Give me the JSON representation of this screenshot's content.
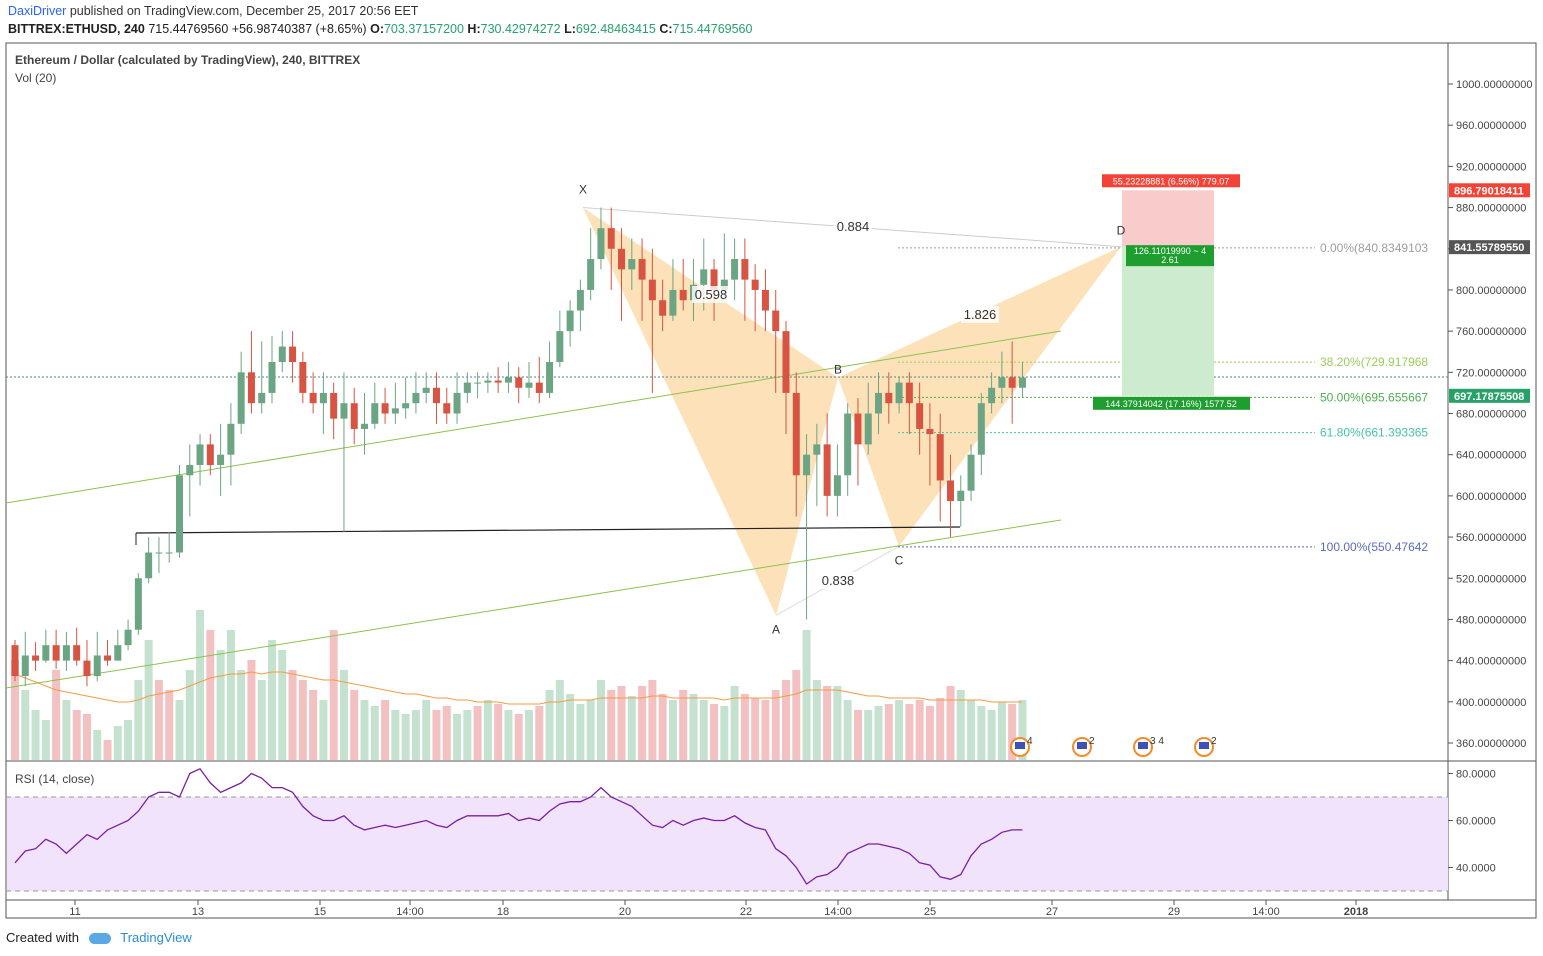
{
  "header": {
    "user": "DaxiDriver",
    "published": "published on TradingView.com, December 25, 2017 20:56 EET",
    "symbol": "BITTREX:ETHUSD, 240",
    "last": "715.44769560",
    "change": "+56.98740387 (+8.65%)",
    "o_label": "O:",
    "o": "703.37157200",
    "h_label": "H:",
    "h": "730.42974272",
    "l_label": "L:",
    "l": "692.48463415",
    "c_label": "C:",
    "c": "715.44769560"
  },
  "legend": {
    "title": "Ethereum / Dollar (calculated by TradingView), 240, BITTREX",
    "vol": "Vol (20)",
    "rsi": "RSI (14, close)"
  },
  "footer": {
    "created": "Created with",
    "brand": "TradingView"
  },
  "colors": {
    "up": "#6ba583",
    "down": "#d75442",
    "vol_up": "#c5e2d1",
    "vol_down": "#f3c1c1",
    "pattern": "#fcd9a8",
    "rsi": "#7b1fa2"
  },
  "chart_data": {
    "type": "candlestick",
    "price_axis": {
      "min": 340,
      "max": 1020,
      "ticks": [
        "1000.00000000",
        "960.00000000",
        "920.00000000",
        "880.00000000",
        "840.00000000",
        "800.00000000",
        "760.00000000",
        "720.00000000",
        "680.00000000",
        "640.00000000",
        "600.00000000",
        "560.00000000",
        "520.00000000",
        "480.00000000",
        "440.00000000",
        "400.00000000",
        "360.00000000"
      ]
    },
    "rsi_axis": {
      "ticks": [
        "80.0000",
        "60.0000",
        "40.0000"
      ],
      "upper": 70,
      "lower": 30
    },
    "time_axis": [
      "11",
      "13",
      "15",
      "14:00",
      "18",
      "20",
      "22",
      "14:00",
      "25",
      "27",
      "29",
      "14:00",
      "2018"
    ],
    "candles": [
      [
        455,
        425,
        460,
        420
      ],
      [
        425,
        445,
        468,
        415
      ],
      [
        445,
        440,
        458,
        430
      ],
      [
        440,
        455,
        470,
        438
      ],
      [
        455,
        440,
        470,
        432
      ],
      [
        440,
        455,
        468,
        430
      ],
      [
        455,
        440,
        472,
        435
      ],
      [
        440,
        425,
        460,
        415
      ],
      [
        425,
        445,
        468,
        420
      ],
      [
        445,
        440,
        460,
        435
      ],
      [
        440,
        455,
        470,
        445
      ],
      [
        455,
        470,
        480,
        450
      ],
      [
        470,
        520,
        525,
        465
      ],
      [
        520,
        545,
        560,
        515
      ],
      [
        545,
        545,
        560,
        525
      ],
      [
        545,
        545,
        565,
        535
      ],
      [
        545,
        620,
        630,
        540
      ],
      [
        620,
        630,
        650,
        580
      ],
      [
        630,
        650,
        660,
        610
      ],
      [
        650,
        630,
        660,
        620
      ],
      [
        630,
        640,
        670,
        600
      ],
      [
        640,
        670,
        690,
        610
      ],
      [
        670,
        720,
        740,
        660
      ],
      [
        720,
        690,
        760,
        680
      ],
      [
        690,
        700,
        750,
        680
      ],
      [
        700,
        730,
        755,
        690
      ],
      [
        730,
        745,
        760,
        720
      ],
      [
        745,
        730,
        760,
        710
      ],
      [
        730,
        700,
        740,
        690
      ],
      [
        700,
        690,
        720,
        680
      ],
      [
        690,
        700,
        720,
        660
      ],
      [
        700,
        675,
        710,
        655
      ],
      [
        675,
        690,
        720,
        565
      ],
      [
        690,
        665,
        705,
        650
      ],
      [
        665,
        670,
        700,
        640
      ],
      [
        670,
        690,
        710,
        665
      ],
      [
        690,
        680,
        705,
        670
      ],
      [
        680,
        685,
        710,
        670
      ],
      [
        685,
        690,
        715,
        675
      ],
      [
        690,
        700,
        720,
        680
      ],
      [
        700,
        705,
        720,
        690
      ],
      [
        705,
        690,
        720,
        670
      ],
      [
        690,
        680,
        705,
        670
      ],
      [
        680,
        700,
        720,
        670
      ],
      [
        700,
        710,
        720,
        690
      ],
      [
        710,
        710,
        720,
        695
      ],
      [
        710,
        712,
        720,
        700
      ],
      [
        712,
        710,
        725,
        700
      ],
      [
        710,
        715,
        730,
        700
      ],
      [
        715,
        705,
        725,
        690
      ],
      [
        705,
        710,
        730,
        695
      ],
      [
        710,
        700,
        735,
        690
      ],
      [
        700,
        730,
        750,
        695
      ],
      [
        730,
        760,
        780,
        725
      ],
      [
        760,
        780,
        790,
        745
      ],
      [
        780,
        800,
        810,
        760
      ],
      [
        800,
        830,
        860,
        790
      ],
      [
        830,
        860,
        880,
        820
      ],
      [
        860,
        840,
        880,
        800
      ],
      [
        840,
        820,
        860,
        770
      ],
      [
        820,
        830,
        850,
        800
      ],
      [
        830,
        810,
        850,
        770
      ],
      [
        810,
        790,
        840,
        700
      ],
      [
        790,
        775,
        810,
        760
      ],
      [
        775,
        800,
        830,
        770
      ],
      [
        800,
        790,
        830,
        780
      ],
      [
        790,
        805,
        830,
        770
      ],
      [
        805,
        820,
        850,
        780
      ],
      [
        820,
        800,
        830,
        770
      ],
      [
        800,
        810,
        855,
        790
      ],
      [
        810,
        830,
        850,
        790
      ],
      [
        830,
        810,
        850,
        770
      ],
      [
        810,
        800,
        825,
        760
      ],
      [
        800,
        780,
        820,
        760
      ],
      [
        780,
        760,
        800,
        700
      ],
      [
        760,
        700,
        770,
        660
      ],
      [
        700,
        620,
        720,
        580
      ],
      [
        620,
        640,
        660,
        480
      ],
      [
        640,
        650,
        670,
        590
      ],
      [
        650,
        600,
        680,
        580
      ],
      [
        600,
        620,
        650,
        580
      ],
      [
        620,
        680,
        690,
        600
      ],
      [
        680,
        650,
        695,
        610
      ],
      [
        650,
        680,
        710,
        640
      ],
      [
        680,
        700,
        720,
        660
      ],
      [
        700,
        690,
        720,
        670
      ],
      [
        690,
        710,
        715,
        680
      ],
      [
        710,
        690,
        720,
        660
      ],
      [
        690,
        665,
        710,
        640
      ],
      [
        665,
        660,
        690,
        610
      ],
      [
        660,
        615,
        680,
        575
      ],
      [
        615,
        595,
        640,
        560
      ],
      [
        595,
        605,
        620,
        570
      ],
      [
        605,
        640,
        650,
        595
      ],
      [
        640,
        690,
        700,
        620
      ],
      [
        690,
        705,
        720,
        680
      ],
      [
        705,
        715,
        740,
        690
      ],
      [
        715,
        705,
        750,
        670
      ],
      [
        705,
        715,
        730,
        695
      ]
    ],
    "volumes": [
      405,
      390,
      380,
      375,
      400,
      385,
      380,
      378,
      370,
      365,
      372,
      375,
      395,
      415,
      395,
      390,
      385,
      400,
      430,
      420,
      410,
      420,
      400,
      405,
      395,
      415,
      410,
      400,
      395,
      390,
      385,
      420,
      400,
      390,
      385,
      382,
      385,
      380,
      378,
      380,
      385,
      380,
      382,
      378,
      380,
      382,
      385,
      383,
      380,
      378,
      380,
      382,
      390,
      395,
      388,
      383,
      385,
      395,
      390,
      392,
      387,
      392,
      395,
      388,
      385,
      390,
      388,
      385,
      383,
      382,
      392,
      388,
      386,
      385,
      390,
      395,
      400,
      420,
      395,
      392,
      392,
      385,
      380,
      380,
      382,
      383,
      385,
      383,
      385,
      382,
      386,
      392,
      390,
      385,
      382,
      380,
      384,
      383,
      385
    ],
    "volume_up": [
      0,
      1,
      1,
      1,
      0,
      1,
      0,
      0,
      1,
      0,
      1,
      1,
      1,
      1,
      0,
      0,
      1,
      1,
      1,
      0,
      1,
      1,
      1,
      0,
      1,
      1,
      1,
      0,
      0,
      0,
      1,
      0,
      1,
      0,
      1,
      1,
      0,
      1,
      1,
      1,
      1,
      0,
      0,
      1,
      1,
      0,
      1,
      0,
      1,
      0,
      1,
      0,
      1,
      1,
      1,
      1,
      1,
      1,
      0,
      0,
      1,
      0,
      0,
      0,
      1,
      0,
      1,
      1,
      0,
      1,
      1,
      0,
      0,
      0,
      0,
      0,
      0,
      1,
      1,
      0,
      1,
      1,
      0,
      1,
      1,
      0,
      1,
      0,
      0,
      0,
      0,
      0,
      1,
      1,
      1,
      1,
      1,
      0,
      1
    ],
    "vol_ma": [
      398,
      396,
      394,
      392,
      390,
      389,
      388,
      387,
      386,
      385,
      384,
      384,
      385,
      387,
      388,
      389,
      390,
      392,
      394,
      396,
      397,
      398,
      398,
      399,
      398,
      399,
      399,
      398,
      397,
      396,
      395,
      395,
      394,
      393,
      392,
      391,
      390,
      389,
      388,
      388,
      387,
      386,
      386,
      385,
      385,
      384,
      384,
      384,
      383,
      383,
      383,
      383,
      384,
      384,
      385,
      385,
      385,
      386,
      386,
      386,
      386,
      386,
      387,
      387,
      386,
      386,
      386,
      386,
      386,
      385,
      386,
      386,
      386,
      386,
      386,
      387,
      388,
      390,
      390,
      390,
      390,
      389,
      388,
      387,
      387,
      386,
      386,
      386,
      386,
      385,
      385,
      385,
      385,
      385,
      385,
      384,
      384,
      384,
      384
    ],
    "rsi": [
      42,
      47,
      48,
      52,
      50,
      46,
      50,
      54,
      52,
      56,
      58,
      60,
      64,
      70,
      72,
      72,
      70,
      80,
      82,
      76,
      72,
      74,
      76,
      80,
      78,
      74,
      74,
      72,
      66,
      62,
      60,
      60,
      62,
      58,
      56,
      57,
      58,
      57,
      58,
      59,
      60,
      58,
      57,
      60,
      62,
      62,
      62,
      62,
      63,
      60,
      61,
      60,
      64,
      67,
      68,
      68,
      70,
      74,
      70,
      68,
      66,
      62,
      58,
      57,
      60,
      58,
      60,
      61,
      60,
      60,
      62,
      59,
      57,
      56,
      48,
      45,
      40,
      33,
      36,
      37,
      40,
      46,
      48,
      50,
      50,
      49,
      48,
      46,
      42,
      41,
      36,
      35,
      37,
      45,
      50,
      52,
      55,
      56,
      56
    ],
    "pattern": {
      "points": {
        "X": 880,
        "A": 484,
        "B": 715,
        "C": 551,
        "D": 842
      },
      "ratios": {
        "XB": "0.598",
        "AC": "0.838",
        "XD": "0.884",
        "BD": "1.826"
      },
      "labels": [
        "X",
        "A",
        "B",
        "C",
        "D"
      ]
    },
    "fibs": [
      {
        "label": "0.00%(840.8349103",
        "price": 840.83,
        "color": "#9e9e9e"
      },
      {
        "label": "38.20%(729.917968",
        "price": 729.92,
        "color": "#9bcd5a"
      },
      {
        "label": "50.00%(695.655667",
        "price": 695.66,
        "color": "#4caf50"
      },
      {
        "label": "61.80%(661.393365",
        "price": 661.39,
        "color": "#45c4a0"
      },
      {
        "label": "100.00%(550.47642",
        "price": 550.48,
        "color": "#5c6bc0"
      }
    ],
    "trade": {
      "stop_label": "55.23228881 (6.56%) 779.07",
      "ratio_label1": "126.11019990 ~ 4",
      "ratio_label2": "2.61",
      "target_label": "144.37914042 (17.16%) 1577.52",
      "stop": 896.79,
      "entry": 841.56,
      "target": 697.18
    },
    "price_tags": [
      {
        "text": "896.79018411",
        "price": 896.79,
        "bg": "#f44336"
      },
      {
        "text": "841.55789550",
        "price": 841.56,
        "bg": "#555555"
      },
      {
        "text": "697.17875508",
        "price": 697.18,
        "bg": "#26a269"
      }
    ],
    "events": [
      {
        "count": "4"
      },
      {
        "count": "2"
      },
      {
        "count": "3 4"
      },
      {
        "count": "2"
      }
    ]
  }
}
